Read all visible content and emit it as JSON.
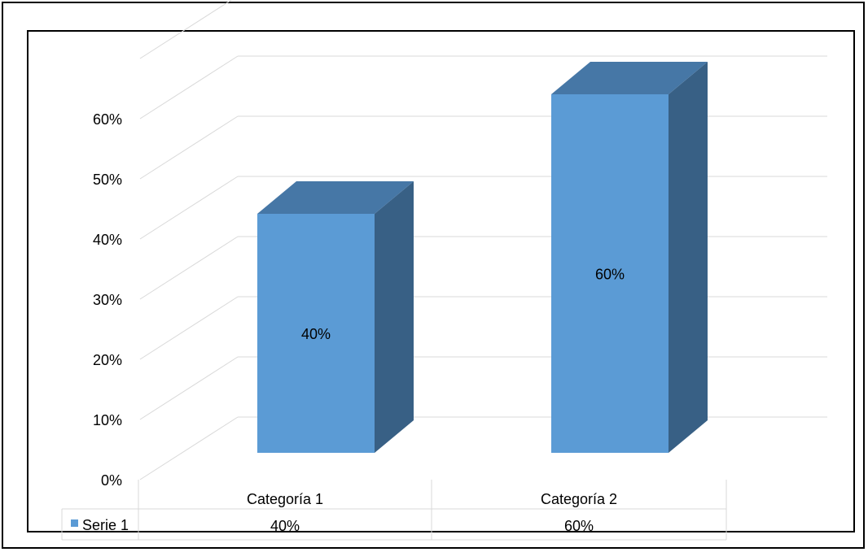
{
  "chart_data": {
    "type": "bar",
    "style": "3d-column-with-data-table",
    "categories": [
      "Categoría 1",
      "Categoría 2"
    ],
    "series": [
      {
        "name": "Serie 1",
        "values": [
          0.4,
          0.6
        ],
        "color": "#5B9BD5"
      }
    ],
    "data_labels": [
      "40%",
      "60%"
    ],
    "y_ticks": [
      "0%",
      "10%",
      "20%",
      "30%",
      "40%",
      "50%",
      "60%"
    ],
    "y_tick_values": [
      0,
      0.1,
      0.2,
      0.3,
      0.4,
      0.5,
      0.6
    ],
    "ylim": [
      0,
      0.6
    ],
    "grid": true,
    "data_table": {
      "legend_label": "Serie 1",
      "values": [
        "40%",
        "60%"
      ]
    },
    "colors": {
      "front": "#5B9BD5",
      "top": "#4677A6",
      "side": "#386085",
      "grid": "#D9D9D9"
    }
  }
}
